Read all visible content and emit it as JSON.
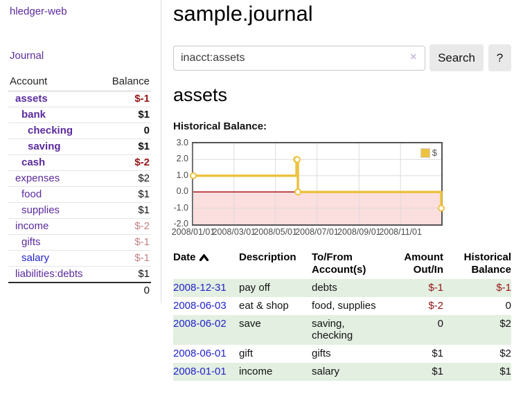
{
  "colors": {
    "accent_purple": "#5b2a9d",
    "link_blue": "#2222cc",
    "negative": "#941313",
    "negative_dim": "#c28080",
    "row_stripe_green": "#e3efe1",
    "chart_line": "#edc240",
    "chart_negative_fill": "#fbdede",
    "chart_zero_line": "#a40000"
  },
  "sidebar": {
    "app_title": "hledger-web",
    "journal_link": "Journal",
    "account_header": "Account",
    "balance_header": "Balance",
    "accounts": [
      {
        "name": "assets",
        "indent": 0,
        "matched": true,
        "balance": "$-1",
        "balance_class": "neg"
      },
      {
        "name": "bank",
        "indent": 1,
        "matched": true,
        "balance": "$1",
        "balance_class": "pos"
      },
      {
        "name": "checking",
        "indent": 2,
        "matched": true,
        "balance": "0",
        "balance_class": "pos"
      },
      {
        "name": "saving",
        "indent": 2,
        "matched": true,
        "balance": "$1",
        "balance_class": "pos"
      },
      {
        "name": "cash",
        "indent": 1,
        "matched": true,
        "balance": "$-2",
        "balance_class": "neg"
      },
      {
        "name": "expenses",
        "indent": 0,
        "matched": false,
        "balance": "$2",
        "balance_class": "pos"
      },
      {
        "name": "food",
        "indent": 1,
        "matched": false,
        "balance": "$1",
        "balance_class": "pos"
      },
      {
        "name": "supplies",
        "indent": 1,
        "matched": false,
        "balance": "$1",
        "balance_class": "pos"
      },
      {
        "name": "income",
        "indent": 0,
        "matched": false,
        "balance": "$-2",
        "balance_class": "neg-dim"
      },
      {
        "name": "gifts",
        "indent": 1,
        "matched": false,
        "balance": "$-1",
        "balance_class": "neg-dim"
      },
      {
        "name": "salary",
        "indent": 1,
        "matched": false,
        "link_blue": true,
        "balance": "$-1",
        "balance_class": "neg-dim"
      },
      {
        "name": "liabilities:debts",
        "indent": 0,
        "matched": false,
        "balance": "$1",
        "balance_class": "pos"
      }
    ],
    "total": "0"
  },
  "header": {
    "title": "sample.journal"
  },
  "search": {
    "value": "inacct:assets",
    "clear_icon": "×",
    "search_button": "Search",
    "help_button": "?"
  },
  "account_page": {
    "heading": "assets",
    "chart_title": "Historical Balance:"
  },
  "chart_data": {
    "type": "line",
    "step": true,
    "title": "Historical Balance:",
    "legend": [
      {
        "name": "$",
        "color": "#edc240"
      }
    ],
    "x": [
      "2008-01-01",
      "2008-06-01",
      "2008-06-02",
      "2008-06-03",
      "2008-12-31"
    ],
    "y": [
      1,
      2,
      2,
      0,
      -1
    ],
    "xrange": [
      "2008-01-01",
      "2008-12-31"
    ],
    "ylim": [
      -2,
      3
    ],
    "ytick_labels": [
      "3.0",
      "2.0",
      "1.0",
      "0.0",
      "-1.0",
      "-2.0"
    ],
    "xticks": [
      {
        "label": "2008/01/01",
        "date": "2008-01-01"
      },
      {
        "label": "2008/03/01",
        "date": "2008-03-01"
      },
      {
        "label": "2008/05/01",
        "date": "2008-05-01"
      },
      {
        "label": "2008/07/01",
        "date": "2008-07-01"
      },
      {
        "label": "2008/09/01",
        "date": "2008-09-01"
      },
      {
        "label": "2008/11/01",
        "date": "2008-11-01"
      }
    ],
    "grid": true,
    "legend_position": "top-right"
  },
  "register": {
    "columns": [
      "Date",
      "Description",
      "To/From Account(s)",
      "Amount Out/In",
      "Historical Balance"
    ],
    "rows": [
      {
        "date": "2008-12-31",
        "description": "pay off",
        "accounts": "debts",
        "amount": "$-1",
        "amount_negative": true,
        "balance": "$-1",
        "balance_negative": true
      },
      {
        "date": "2008-06-03",
        "description": "eat & shop",
        "accounts": "food, supplies",
        "amount": "$-2",
        "amount_negative": true,
        "balance": "0",
        "balance_negative": false
      },
      {
        "date": "2008-06-02",
        "description": "save",
        "accounts": "saving, checking",
        "amount": "0",
        "amount_negative": false,
        "balance": "$2",
        "balance_negative": false
      },
      {
        "date": "2008-06-01",
        "description": "gift",
        "accounts": "gifts",
        "amount": "$1",
        "amount_negative": false,
        "balance": "$2",
        "balance_negative": false
      },
      {
        "date": "2008-01-01",
        "description": "income",
        "accounts": "salary",
        "amount": "$1",
        "amount_negative": false,
        "balance": "$1",
        "balance_negative": false
      }
    ]
  }
}
